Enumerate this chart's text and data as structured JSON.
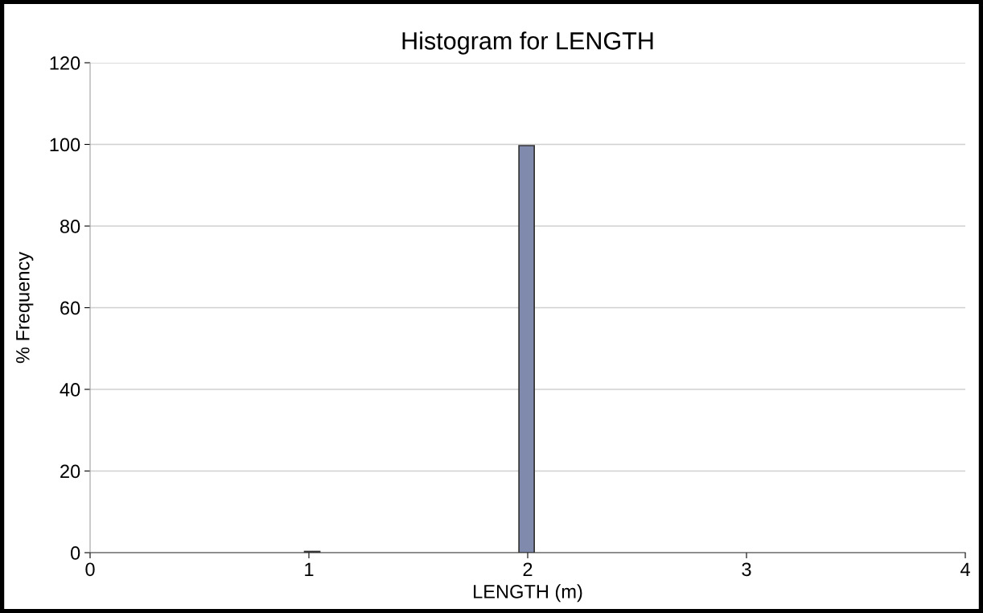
{
  "chart_data": {
    "type": "histogram",
    "title": "Histogram for LENGTH",
    "xlabel": "LENGTH (m)",
    "ylabel": "% Frequency",
    "bins": [
      0.98,
      1.05,
      1.12,
      1.19,
      1.26,
      1.33,
      1.4,
      1.47,
      1.54,
      1.61,
      1.68,
      1.75,
      1.82,
      1.89,
      1.96,
      2.03
    ],
    "values": [
      0.3,
      0,
      0,
      0,
      0,
      0,
      0,
      0,
      0,
      0,
      0,
      0,
      0,
      0,
      99.7
    ],
    "color": "#7f8aac",
    "xlim": [
      0,
      4
    ],
    "xticks": [
      0,
      1,
      2,
      3,
      4
    ],
    "ylim": [
      0,
      120
    ],
    "yticks": [
      0,
      20,
      40,
      60,
      80,
      100,
      120
    ],
    "grid": "y"
  }
}
